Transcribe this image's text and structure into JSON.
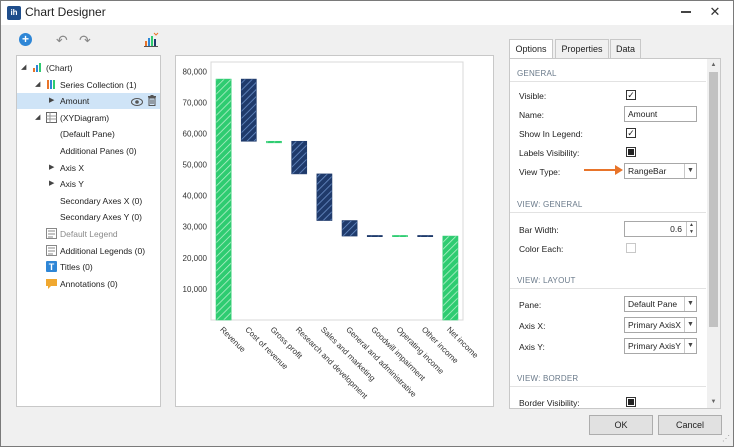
{
  "window": {
    "title": "Chart Designer",
    "close_glyph": "✕"
  },
  "toolbar": {
    "add_label": "+",
    "undo_label": "↶",
    "redo_label": "↷"
  },
  "tree": [
    {
      "label": "(Chart)",
      "icon": "chart-icon",
      "indent": 0,
      "arrow": "◢",
      "muted": false,
      "selected": false
    },
    {
      "label": "Series Collection (1)",
      "icon": "series-collection-icon",
      "indent": 1,
      "arrow": "◢",
      "muted": false,
      "selected": false
    },
    {
      "label": "Amount",
      "icon": "",
      "indent": 2,
      "arrow": "▶",
      "muted": false,
      "selected": true
    },
    {
      "label": "(XYDiagram)",
      "icon": "diagram-icon",
      "indent": 1,
      "arrow": "◢",
      "muted": false,
      "selected": false
    },
    {
      "label": "(Default Pane)",
      "icon": "",
      "indent": 2,
      "arrow": "",
      "muted": false,
      "selected": false
    },
    {
      "label": "Additional Panes (0)",
      "icon": "",
      "indent": 2,
      "arrow": "",
      "muted": false,
      "selected": false
    },
    {
      "label": "Axis X",
      "icon": "",
      "indent": 2,
      "arrow": "▶",
      "muted": false,
      "selected": false
    },
    {
      "label": "Axis Y",
      "icon": "",
      "indent": 2,
      "arrow": "▶",
      "muted": false,
      "selected": false
    },
    {
      "label": "Secondary Axes X (0)",
      "icon": "",
      "indent": 2,
      "arrow": "",
      "muted": false,
      "selected": false
    },
    {
      "label": "Secondary Axes Y (0)",
      "icon": "",
      "indent": 2,
      "arrow": "",
      "muted": false,
      "selected": false
    },
    {
      "label": "Default Legend",
      "icon": "legend-icon",
      "indent": 1,
      "arrow": "",
      "muted": true,
      "selected": false
    },
    {
      "label": "Additional Legends (0)",
      "icon": "legend-icon",
      "indent": 1,
      "arrow": "",
      "muted": false,
      "selected": false
    },
    {
      "label": "Titles (0)",
      "icon": "titles-icon",
      "indent": 1,
      "arrow": "",
      "muted": false,
      "selected": false
    },
    {
      "label": "Annotations (0)",
      "icon": "annotation-icon",
      "indent": 1,
      "arrow": "",
      "muted": false,
      "selected": false
    }
  ],
  "chart_data": {
    "type": "bar",
    "subtype": "waterfall range bar",
    "categories": [
      "Revenue",
      "Cost of revenue",
      "Gross profit",
      "Research and development",
      "Sales and marketing",
      "General and administrative",
      "Goodwill impairment",
      "Operating income",
      "Other income",
      "Net income"
    ],
    "series": [
      {
        "name": "Amount",
        "ranges": [
          [
            0,
            77500
          ],
          [
            57500,
            77500
          ],
          [
            57000,
            57500
          ],
          [
            47000,
            57500
          ],
          [
            32000,
            47000
          ],
          [
            27000,
            32000
          ],
          [
            26800,
            27200
          ],
          [
            26800,
            27200
          ],
          [
            26800,
            27200
          ],
          [
            0,
            27000
          ]
        ],
        "colors": [
          "#2ecc71",
          "#1f3a6b",
          "#2ecc71",
          "#1f3a6b",
          "#1f3a6b",
          "#1f3a6b",
          "#1f3a6b",
          "#2ecc71",
          "#1f3a6b",
          "#2ecc71"
        ]
      }
    ],
    "yticks": [
      "10,000",
      "20,000",
      "30,000",
      "40,000",
      "50,000",
      "60,000",
      "70,000",
      "80,000"
    ],
    "ylim": [
      0,
      83000
    ],
    "grid": false
  },
  "props": {
    "tabs": [
      "Options",
      "Properties",
      "Data"
    ],
    "active_tab": "Options",
    "sections": {
      "general": "GENERAL",
      "view_general": "VIEW: GENERAL",
      "view_layout": "VIEW: LAYOUT",
      "view_border": "VIEW: BORDER"
    },
    "visible_label": "Visible:",
    "visible_check": "✓",
    "name_label": "Name:",
    "name_value": "Amount",
    "show_legend_label": "Show In Legend:",
    "show_legend_check": "✓",
    "labels_visibility_label": "Labels Visibility:",
    "view_type_label": "View Type:",
    "view_type_value": "RangeBar",
    "bar_width_label": "Bar Width:",
    "bar_width_value": "0.6",
    "color_each_label": "Color Each:",
    "pane_label": "Pane:",
    "pane_value": "Default Pane",
    "axis_x_label": "Axis X:",
    "axis_x_value": "Primary AxisX",
    "axis_y_label": "Axis Y:",
    "axis_y_value": "Primary AxisY",
    "border_visibility_label": "Border Visibility:",
    "arrow_color": "#e8742a"
  },
  "buttons": {
    "ok": "OK",
    "cancel": "Cancel"
  }
}
